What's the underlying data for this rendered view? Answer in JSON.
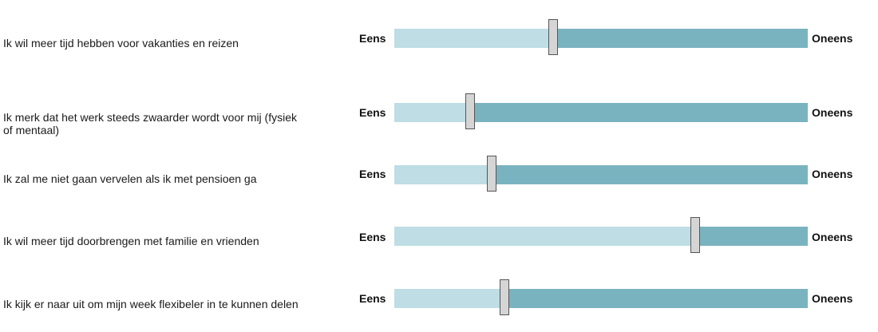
{
  "scale": {
    "left_label": "Eens",
    "right_label": "Oneens"
  },
  "colors": {
    "agree_side": "#bedde5",
    "disagree_side": "#7ab3c0",
    "thumb": "#d5d5d5"
  },
  "items": [
    {
      "statement": "Ik wil meer tijd hebben voor vakanties en reizen",
      "value": 0.386
    },
    {
      "statement": "Ik merk dat het werk steeds zwaarder wordt voor mij (fysiek of mentaal)",
      "value": 0.185
    },
    {
      "statement": "Ik zal me niet gaan vervelen als ik met pensioen ga",
      "value": 0.238
    },
    {
      "statement": "Ik wil meer tijd doorbrengen met familie en vrienden",
      "value": 0.73
    },
    {
      "statement": "Ik kijk er naar uit om mijn week flexibeler in te kunnen delen",
      "value": 0.268
    }
  ]
}
